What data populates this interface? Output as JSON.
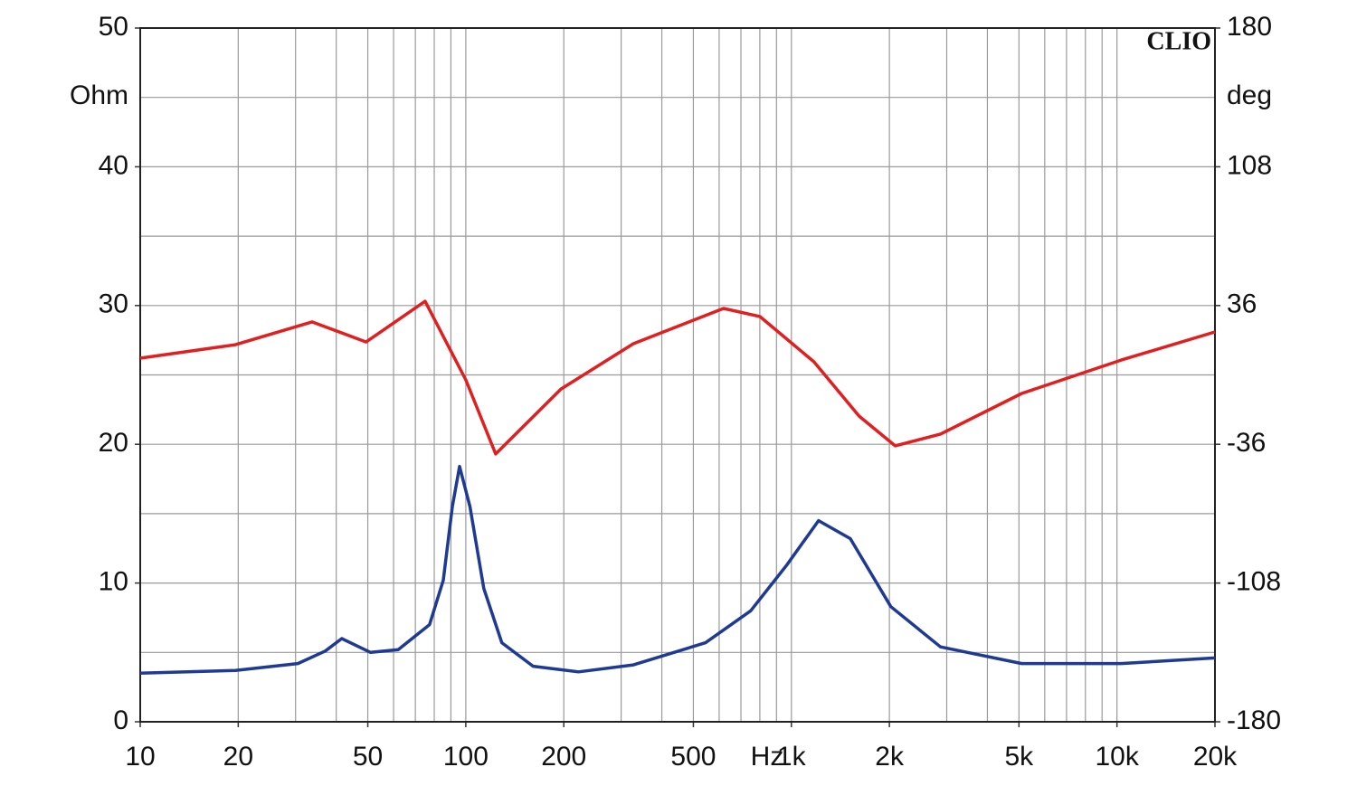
{
  "chart_data": {
    "type": "line",
    "annotation": "CLIO",
    "xlabel": "Hz",
    "ylabel": "Ohm",
    "y2label": "deg",
    "xscale": "log",
    "grid": true,
    "xlim": [
      10,
      20000
    ],
    "xticks": [
      10,
      20,
      50,
      100,
      200,
      500,
      {
        "value": 1000,
        "label": "1k"
      },
      {
        "value": 2000,
        "label": "2k"
      },
      {
        "value": 5000,
        "label": "5k"
      },
      {
        "value": 10000,
        "label": "10k"
      },
      {
        "value": 20000,
        "label": "20k"
      }
    ],
    "xgrid": [
      10,
      20,
      30,
      40,
      50,
      60,
      70,
      80,
      90,
      100,
      200,
      300,
      400,
      500,
      600,
      700,
      800,
      900,
      1000,
      2000,
      3000,
      4000,
      5000,
      6000,
      7000,
      8000,
      9000,
      10000,
      20000
    ],
    "ylim": [
      0,
      50
    ],
    "yticks": [
      0,
      10,
      20,
      30,
      40,
      50
    ],
    "ygrid": [
      0,
      5,
      10,
      15,
      20,
      25,
      30,
      35,
      40,
      45,
      50
    ],
    "y2lim": [
      -180,
      180
    ],
    "y2ticks": [
      -180,
      -108,
      -36,
      36,
      108,
      180
    ],
    "series": [
      {
        "color": "#1f3a93",
        "x": [
          10,
          19.6,
          30.5,
          37,
          41.6,
          51,
          62,
          77.4,
          85.3,
          90.9,
          95.7,
          103,
          113.6,
          129,
          161,
          222,
          327,
          545,
          750,
          968,
          1212,
          1517,
          2021,
          2870,
          5100,
          10300,
          20000
        ],
        "values": [
          3.5,
          3.7,
          4.2,
          5.1,
          6.0,
          5.0,
          5.2,
          7.0,
          10.2,
          15.5,
          18.4,
          15.5,
          9.6,
          5.7,
          4.0,
          3.6,
          4.1,
          5.7,
          8.0,
          11.3,
          14.5,
          13.2,
          8.3,
          5.4,
          4.2,
          4.2,
          4.6
        ]
      },
      {
        "color": "#e02020",
        "axis": "y2",
        "x": [
          10,
          19.6,
          33.7,
          49.4,
          75,
          100,
          123.5,
          196,
          327,
          619,
          800,
          1173,
          1615,
          2084,
          2870,
          5100,
          10300,
          20000
        ],
        "values": [
          8.7,
          15.7,
          27.5,
          17.1,
          38.2,
          -2.6,
          -41,
          -7.3,
          16.2,
          34.5,
          30.3,
          6.8,
          -21.4,
          -36.8,
          -30.7,
          -9.6,
          7.7,
          22.3
        ]
      }
    ]
  }
}
